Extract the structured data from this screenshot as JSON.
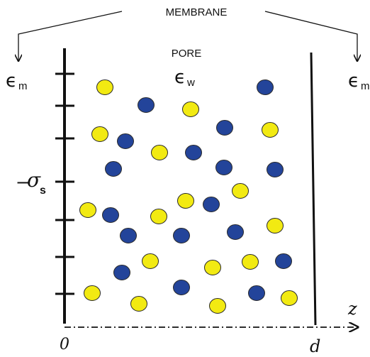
{
  "labels": {
    "membrane": "MEMBRANE",
    "pore": "PORE",
    "epsilon_symbol": "ϵ",
    "epsilon_m_sub": "m",
    "epsilon_w_sub": "w",
    "sigma_symbol": "σ",
    "sigma_sub": "s",
    "sigma_prefix": "−",
    "axis_origin": "0",
    "axis_end": "d",
    "axis_var": "z"
  },
  "colors": {
    "line": "#111111",
    "yellow_ion": "#f2ea12",
    "blue_ion": "#23449a",
    "ion_stroke": "#2a2a2a"
  },
  "ions": {
    "yellow_count": 19,
    "blue_count": 18
  }
}
